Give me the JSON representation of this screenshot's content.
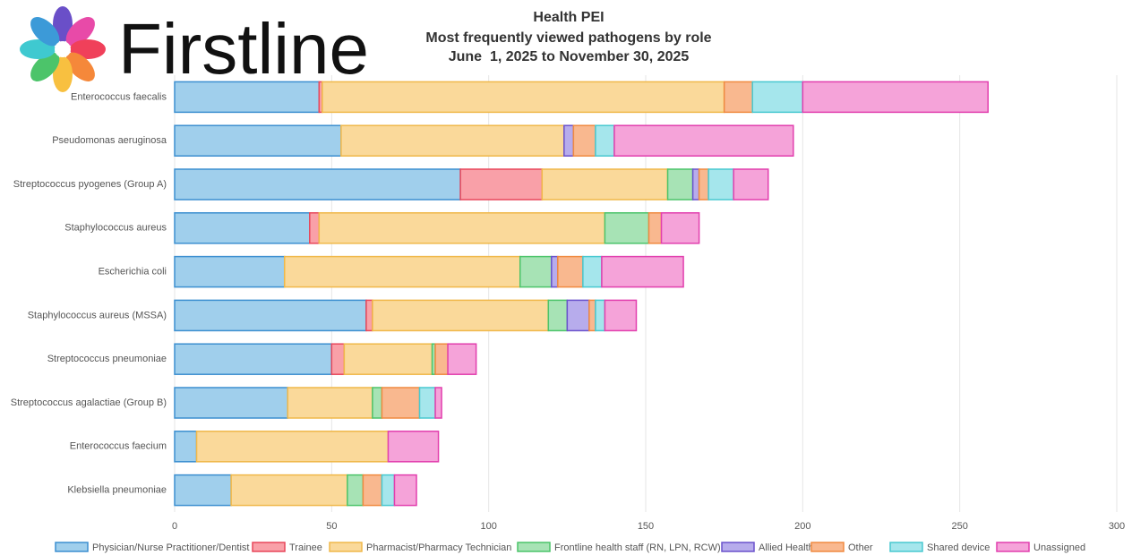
{
  "logo": "Firstline",
  "chart_data": {
    "type": "stacked-barh",
    "title": [
      "Health PEI",
      "Most frequently viewed pathogens by role",
      "June  1, 2025 to November 30, 2025"
    ],
    "categories": [
      "Enterococcus faecalis",
      "Pseudomonas aeruginosa",
      "Streptococcus pyogenes (Group A)",
      "Staphylococcus aureus",
      "Escherichia coli",
      "Staphylococcus aureus (MSSA)",
      "Streptococcus pneumoniae",
      "Streptococcus agalactiae (Group B)",
      "Enterococcus faecium",
      "Klebsiella pneumoniae"
    ],
    "series": [
      {
        "name": "Physician/Nurse Practitioner/Dentist",
        "color": "#a0cfec",
        "stroke": "#3c8fd0",
        "values": [
          46,
          53,
          91,
          43,
          35,
          61,
          50,
          36,
          7,
          18
        ]
      },
      {
        "name": "Trainee",
        "color": "#f9a0a8",
        "stroke": "#e8475a",
        "values": [
          1,
          0,
          26,
          3,
          0,
          2,
          4,
          0,
          0,
          0
        ]
      },
      {
        "name": "Pharmacist/Pharmacy Technician",
        "color": "#fad99a",
        "stroke": "#f0b84a",
        "values": [
          128,
          71,
          40,
          91,
          75,
          56,
          28,
          27,
          61,
          37
        ]
      },
      {
        "name": "Frontline health staff (RN, LPN, RCW)",
        "color": "#a7e3b5",
        "stroke": "#4cc46a",
        "values": [
          0,
          0,
          8,
          14,
          10,
          6,
          1,
          3,
          0,
          5
        ]
      },
      {
        "name": "Allied Health",
        "color": "#b7acec",
        "stroke": "#6a52cc",
        "values": [
          0,
          3,
          2,
          0,
          2,
          7,
          0,
          0,
          0,
          0
        ]
      },
      {
        "name": "Other",
        "color": "#f9b88f",
        "stroke": "#f08a40",
        "values": [
          9,
          7,
          3,
          4,
          8,
          2,
          4,
          12,
          0,
          6
        ]
      },
      {
        "name": "Shared device",
        "color": "#a5e6ec",
        "stroke": "#48c8d0",
        "values": [
          16,
          6,
          8,
          0,
          6,
          3,
          0,
          5,
          0,
          4
        ]
      },
      {
        "name": "Unassigned",
        "color": "#f5a3d9",
        "stroke": "#e23fae",
        "values": [
          59,
          57,
          11,
          12,
          26,
          10,
          9,
          2,
          16,
          7
        ]
      }
    ],
    "xlim": [
      0,
      300
    ],
    "xticks": [
      0,
      50,
      100,
      150,
      200,
      250,
      300
    ],
    "grid": true,
    "legend": "bottom"
  }
}
